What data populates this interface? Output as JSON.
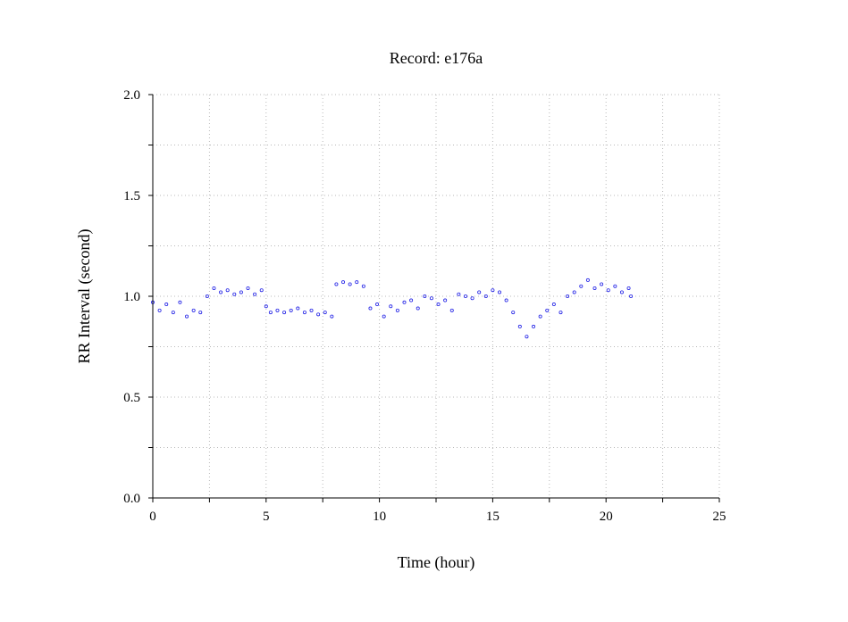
{
  "chart_data": {
    "type": "scatter",
    "title": "Record:  e176a",
    "xlabel": "Time (hour)",
    "ylabel": "RR Interval (second)",
    "xlim": [
      0,
      25
    ],
    "ylim": [
      0,
      2
    ],
    "xticks": [
      "0",
      "5",
      "10",
      "15",
      "20",
      "25"
    ],
    "yticks": [
      "0.0",
      "0.5",
      "1.0",
      "1.5",
      "2.0"
    ],
    "x_minor_step": 2.5,
    "y_minor_step": 0.25,
    "grid": true,
    "point_color": "#2323e6",
    "series": [
      {
        "values_description_skip": true,
        "x": [
          0.0,
          0.3,
          0.6,
          0.9,
          1.2,
          1.5,
          1.8,
          2.1,
          2.4,
          2.7,
          3.0,
          3.3,
          3.6,
          3.9,
          4.2,
          4.5,
          4.8,
          5.0,
          5.2,
          5.5,
          5.8,
          6.1,
          6.4,
          6.7,
          7.0,
          7.3,
          7.6,
          7.9,
          8.1,
          8.4,
          8.7,
          9.0,
          9.3,
          9.6,
          9.9,
          10.2,
          10.5,
          10.8,
          11.1,
          11.4,
          11.7,
          12.0,
          12.3,
          12.6,
          12.9,
          13.2,
          13.5,
          13.8,
          14.1,
          14.4,
          14.7,
          15.0,
          15.3,
          15.6,
          15.9,
          16.2,
          16.5,
          16.8,
          17.1,
          17.4,
          17.7,
          18.0,
          18.3,
          18.6,
          18.9,
          19.2,
          19.5,
          19.8,
          20.1,
          20.4,
          20.7,
          21.0,
          21.1
        ],
        "y": [
          0.97,
          0.93,
          0.96,
          0.92,
          0.97,
          0.9,
          0.93,
          0.92,
          1.0,
          1.04,
          1.02,
          1.03,
          1.01,
          1.02,
          1.04,
          1.01,
          1.03,
          0.95,
          0.92,
          0.93,
          0.92,
          0.93,
          0.94,
          0.92,
          0.93,
          0.91,
          0.92,
          0.9,
          1.06,
          1.07,
          1.06,
          1.07,
          1.05,
          0.94,
          0.96,
          0.9,
          0.95,
          0.93,
          0.97,
          0.98,
          0.94,
          1.0,
          0.99,
          0.96,
          0.98,
          0.93,
          1.01,
          1.0,
          0.99,
          1.02,
          1.0,
          1.03,
          1.02,
          0.98,
          0.92,
          0.85,
          0.8,
          0.85,
          0.9,
          0.93,
          0.96,
          0.92,
          1.0,
          1.02,
          1.05,
          1.08,
          1.04,
          1.06,
          1.03,
          1.05,
          1.02,
          1.04,
          1.0
        ]
      }
    ]
  }
}
